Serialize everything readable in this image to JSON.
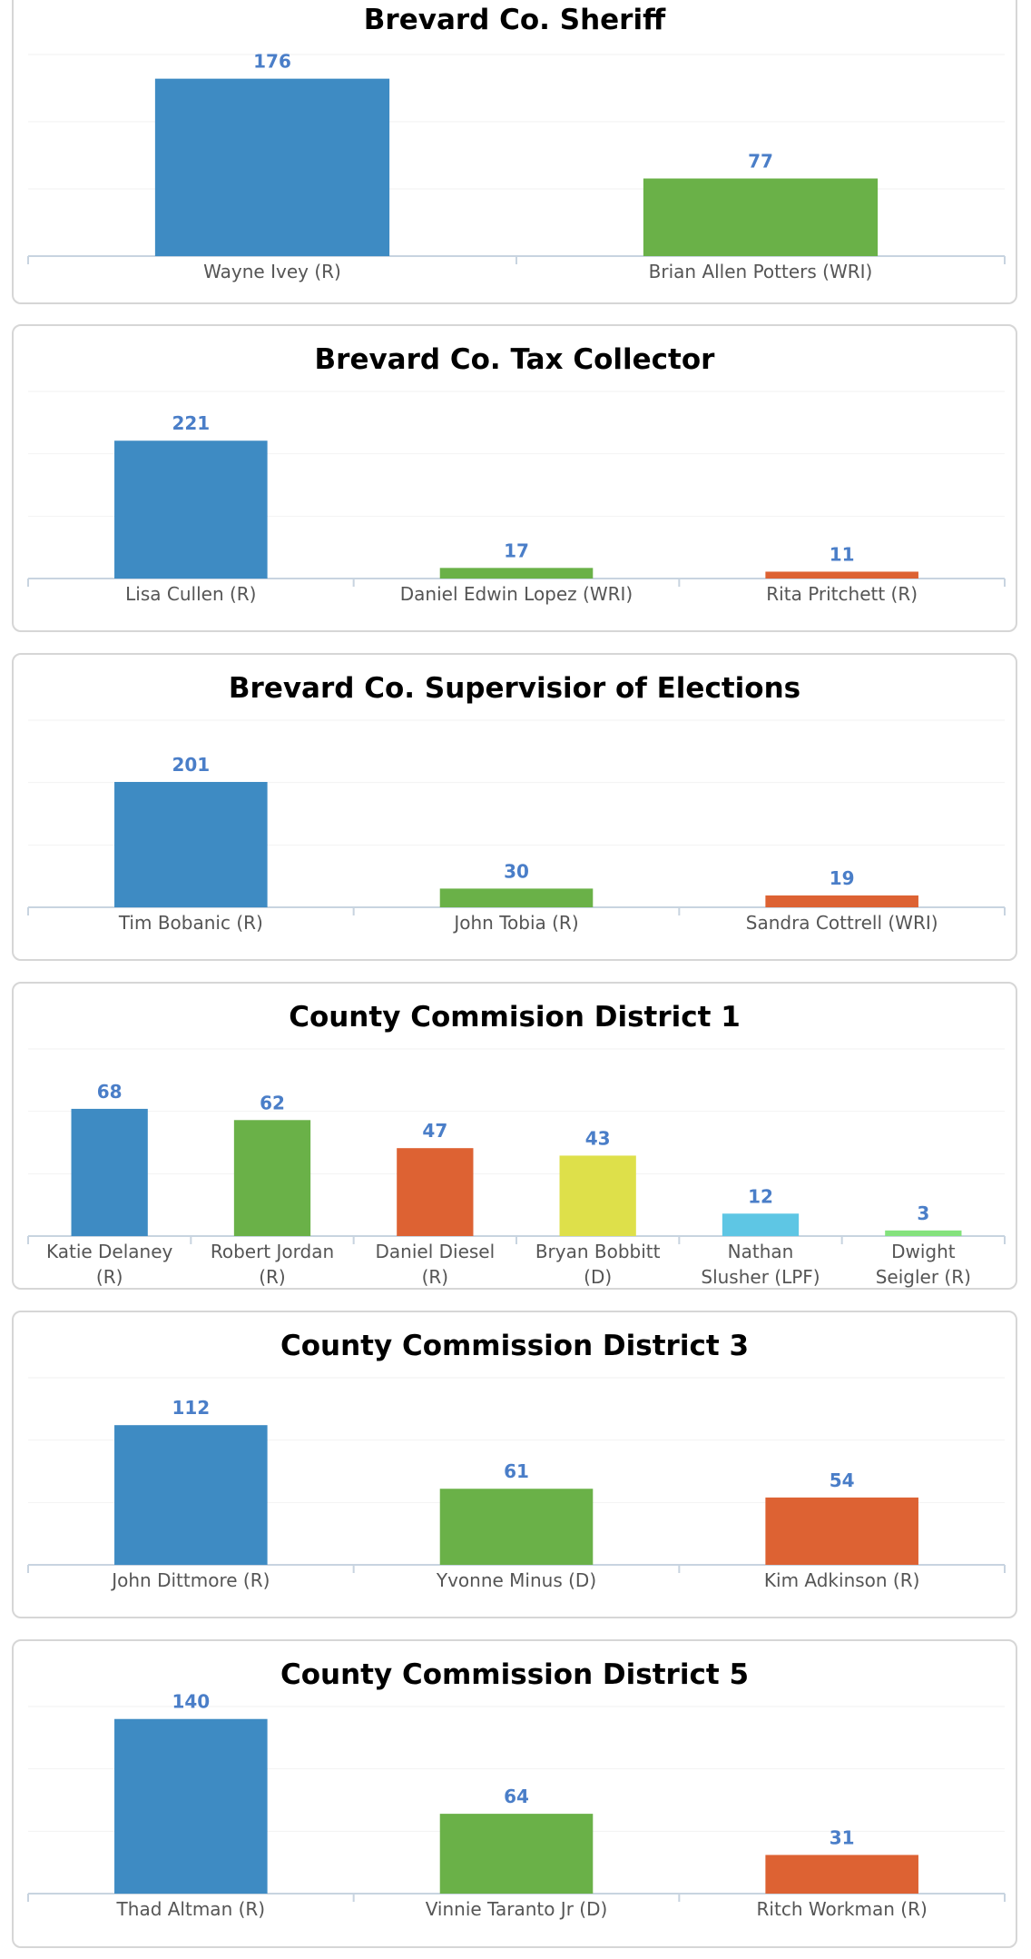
{
  "colors": {
    "accent": "#4a7ec8",
    "palette": [
      "#3e8bc3",
      "#6ab148",
      "#dd6233",
      "#dee04a",
      "#5ec6e4",
      "#84e27d"
    ]
  },
  "chart_data": [
    {
      "type": "bar",
      "title": "Brevard Co. Sheriff",
      "categories": [
        "Wayne Ivey (R)",
        "Brian Allen Potters (WRI)"
      ],
      "values": [
        176,
        77
      ],
      "value_labels": [
        "176",
        "77"
      ],
      "xlabel": "",
      "ylabel": "",
      "ylim": [
        0,
        200
      ],
      "grid": true
    },
    {
      "type": "bar",
      "title": "Brevard Co. Tax Collector",
      "categories": [
        "Lisa Cullen (R)",
        "Daniel Edwin Lopez (WRI)",
        "Rita Pritchett (R)"
      ],
      "values": [
        221,
        17,
        11
      ],
      "value_labels": [
        "221",
        "17",
        "11"
      ],
      "xlabel": "",
      "ylabel": "",
      "ylim": [
        0,
        300
      ],
      "grid": true
    },
    {
      "type": "bar",
      "title": "Brevard Co. Supervisior of Elections",
      "categories": [
        "Tim Bobanic (R)",
        "John Tobia (R)",
        "Sandra Cottrell (WRI)"
      ],
      "values": [
        201,
        30,
        19
      ],
      "value_labels": [
        "201",
        "30",
        "19"
      ],
      "xlabel": "",
      "ylabel": "",
      "ylim": [
        0,
        300
      ],
      "grid": true
    },
    {
      "type": "bar",
      "title": "County Commision District 1",
      "categories": [
        [
          "Katie Delaney",
          "(R)"
        ],
        [
          "Robert Jordan",
          "(R)"
        ],
        [
          "Daniel Diesel",
          "(R)"
        ],
        [
          "Bryan Bobbitt",
          "(D)"
        ],
        [
          "Nathan",
          "Slusher (LPF)"
        ],
        [
          "Dwight",
          "Seigler (R)"
        ]
      ],
      "values": [
        68,
        62,
        47,
        43,
        12,
        3
      ],
      "value_labels": [
        "68",
        "62",
        "47",
        "43",
        "12",
        "3"
      ],
      "xlabel": "",
      "ylabel": "",
      "ylim": [
        0,
        100
      ],
      "grid": true
    },
    {
      "type": "bar",
      "title": "County Commission District 3",
      "categories": [
        "John Dittmore (R)",
        "Yvonne Minus (D)",
        "Kim Adkinson (R)"
      ],
      "values": [
        112,
        61,
        54
      ],
      "value_labels": [
        "112",
        "61",
        "54"
      ],
      "xlabel": "",
      "ylabel": "",
      "ylim": [
        0,
        150
      ],
      "grid": true
    },
    {
      "type": "bar",
      "title": "County Commission District 5",
      "categories": [
        "Thad Altman (R)",
        "Vinnie Taranto Jr (D)",
        "Ritch Workman (R)"
      ],
      "values": [
        140,
        64,
        31
      ],
      "value_labels": [
        "140",
        "64",
        "31"
      ],
      "xlabel": "",
      "ylabel": "",
      "ylim": [
        0,
        150
      ],
      "grid": true
    }
  ]
}
